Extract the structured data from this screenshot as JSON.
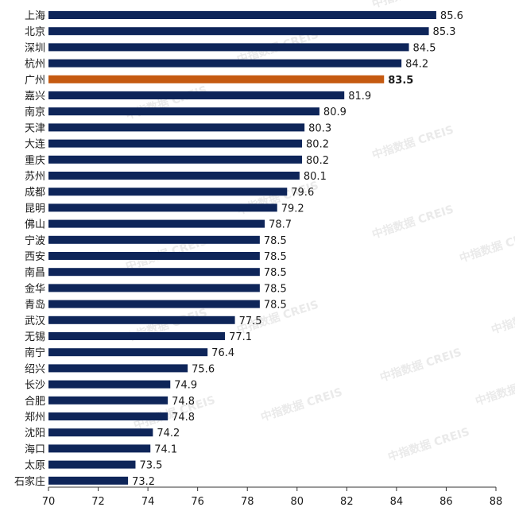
{
  "chart_data": {
    "type": "bar",
    "orientation": "horizontal",
    "title": "",
    "xlabel": "",
    "ylabel": "",
    "xlim": [
      70,
      88
    ],
    "x_ticks": [
      70,
      72,
      74,
      76,
      78,
      80,
      82,
      84,
      86,
      88
    ],
    "grid": false,
    "legend": "none",
    "bar_color": "#0e2559",
    "highlight_color": "#c55a11",
    "highlight_category": "广州",
    "watermark": "中指数据 CREIS",
    "categories": [
      "上海",
      "北京",
      "深圳",
      "杭州",
      "广州",
      "嘉兴",
      "南京",
      "天津",
      "大连",
      "重庆",
      "苏州",
      "成都",
      "昆明",
      "佛山",
      "宁波",
      "西安",
      "南昌",
      "金华",
      "青岛",
      "武汉",
      "无锡",
      "南宁",
      "绍兴",
      "长沙",
      "合肥",
      "郑州",
      "沈阳",
      "海口",
      "太原",
      "石家庄"
    ],
    "values": [
      85.6,
      85.3,
      84.5,
      84.2,
      83.5,
      81.9,
      80.9,
      80.3,
      80.2,
      80.2,
      80.1,
      79.6,
      79.2,
      78.7,
      78.5,
      78.5,
      78.5,
      78.5,
      78.5,
      77.5,
      77.1,
      76.4,
      75.6,
      74.9,
      74.8,
      74.8,
      74.2,
      74.1,
      73.5,
      73.2
    ],
    "value_labels": [
      "85.6",
      "85.3",
      "84.5",
      "84.2",
      "83.5",
      "81.9",
      "80.9",
      "80.3",
      "80.2",
      "80.2",
      "80.1",
      "79.6",
      "79.2",
      "78.7",
      "78.5",
      "78.5",
      "78.5",
      "78.5",
      "78.5",
      "77.5",
      "77.1",
      "76.4",
      "75.6",
      "74.9",
      "74.8",
      "74.8",
      "74.2",
      "74.1",
      "73.5",
      "73.2"
    ]
  }
}
